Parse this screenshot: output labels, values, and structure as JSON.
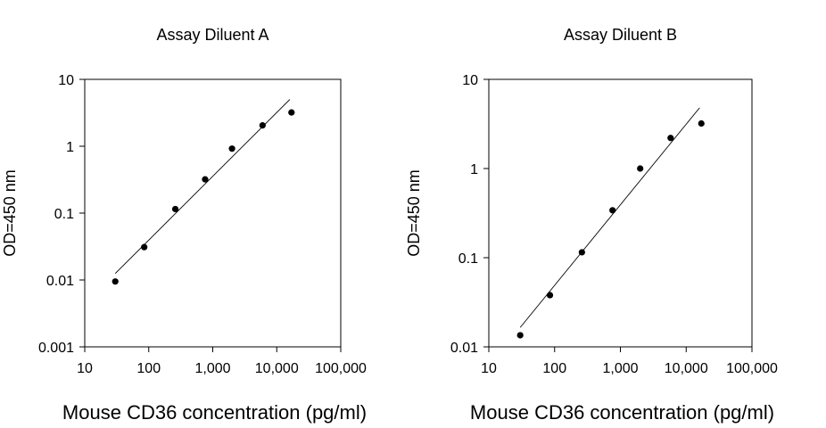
{
  "chart_data": [
    {
      "type": "scatter",
      "title": "Assay Diluent A",
      "xlabel": "Mouse CD36 concentration (pg/ml)",
      "ylabel": "OD=450 nm",
      "xscale": "log",
      "yscale": "log",
      "xlim": [
        10,
        100000
      ],
      "ylim": [
        0.001,
        10
      ],
      "xticks": [
        10,
        100,
        1000,
        10000,
        100000
      ],
      "xtick_labels": [
        "10",
        "100",
        "1,000",
        "10,000",
        "100,000"
      ],
      "yticks": [
        0.001,
        0.01,
        0.1,
        1,
        10
      ],
      "ytick_labels": [
        "0.001",
        "0.01",
        "0.1",
        "1",
        "10"
      ],
      "grid": false,
      "points": [
        {
          "x": 30,
          "y": 0.0095
        },
        {
          "x": 85,
          "y": 0.031
        },
        {
          "x": 260,
          "y": 0.115
        },
        {
          "x": 760,
          "y": 0.32
        },
        {
          "x": 2000,
          "y": 0.92
        },
        {
          "x": 6000,
          "y": 2.05
        },
        {
          "x": 17000,
          "y": 3.2
        }
      ],
      "fit_line": [
        {
          "x": 30,
          "y": 0.0125
        },
        {
          "x": 16000,
          "y": 5.0
        }
      ]
    },
    {
      "type": "scatter",
      "title": "Assay Diluent B",
      "xlabel": "Mouse CD36 concentration (pg/ml)",
      "ylabel": "OD=450 nm",
      "xscale": "log",
      "yscale": "log",
      "xlim": [
        10,
        100000
      ],
      "ylim": [
        0.01,
        10
      ],
      "xticks": [
        10,
        100,
        1000,
        10000,
        100000
      ],
      "xtick_labels": [
        "10",
        "100",
        "1,000",
        "10,000",
        "100,000"
      ],
      "yticks": [
        0.01,
        0.1,
        1,
        10
      ],
      "ytick_labels": [
        "0.01",
        "0.1",
        "1",
        "10"
      ],
      "grid": false,
      "points": [
        {
          "x": 30,
          "y": 0.0135
        },
        {
          "x": 85,
          "y": 0.038
        },
        {
          "x": 260,
          "y": 0.115
        },
        {
          "x": 760,
          "y": 0.34
        },
        {
          "x": 2000,
          "y": 1.0
        },
        {
          "x": 5800,
          "y": 2.2
        },
        {
          "x": 17000,
          "y": 3.2
        }
      ],
      "fit_line": [
        {
          "x": 30,
          "y": 0.0165
        },
        {
          "x": 16000,
          "y": 4.8
        }
      ]
    }
  ]
}
